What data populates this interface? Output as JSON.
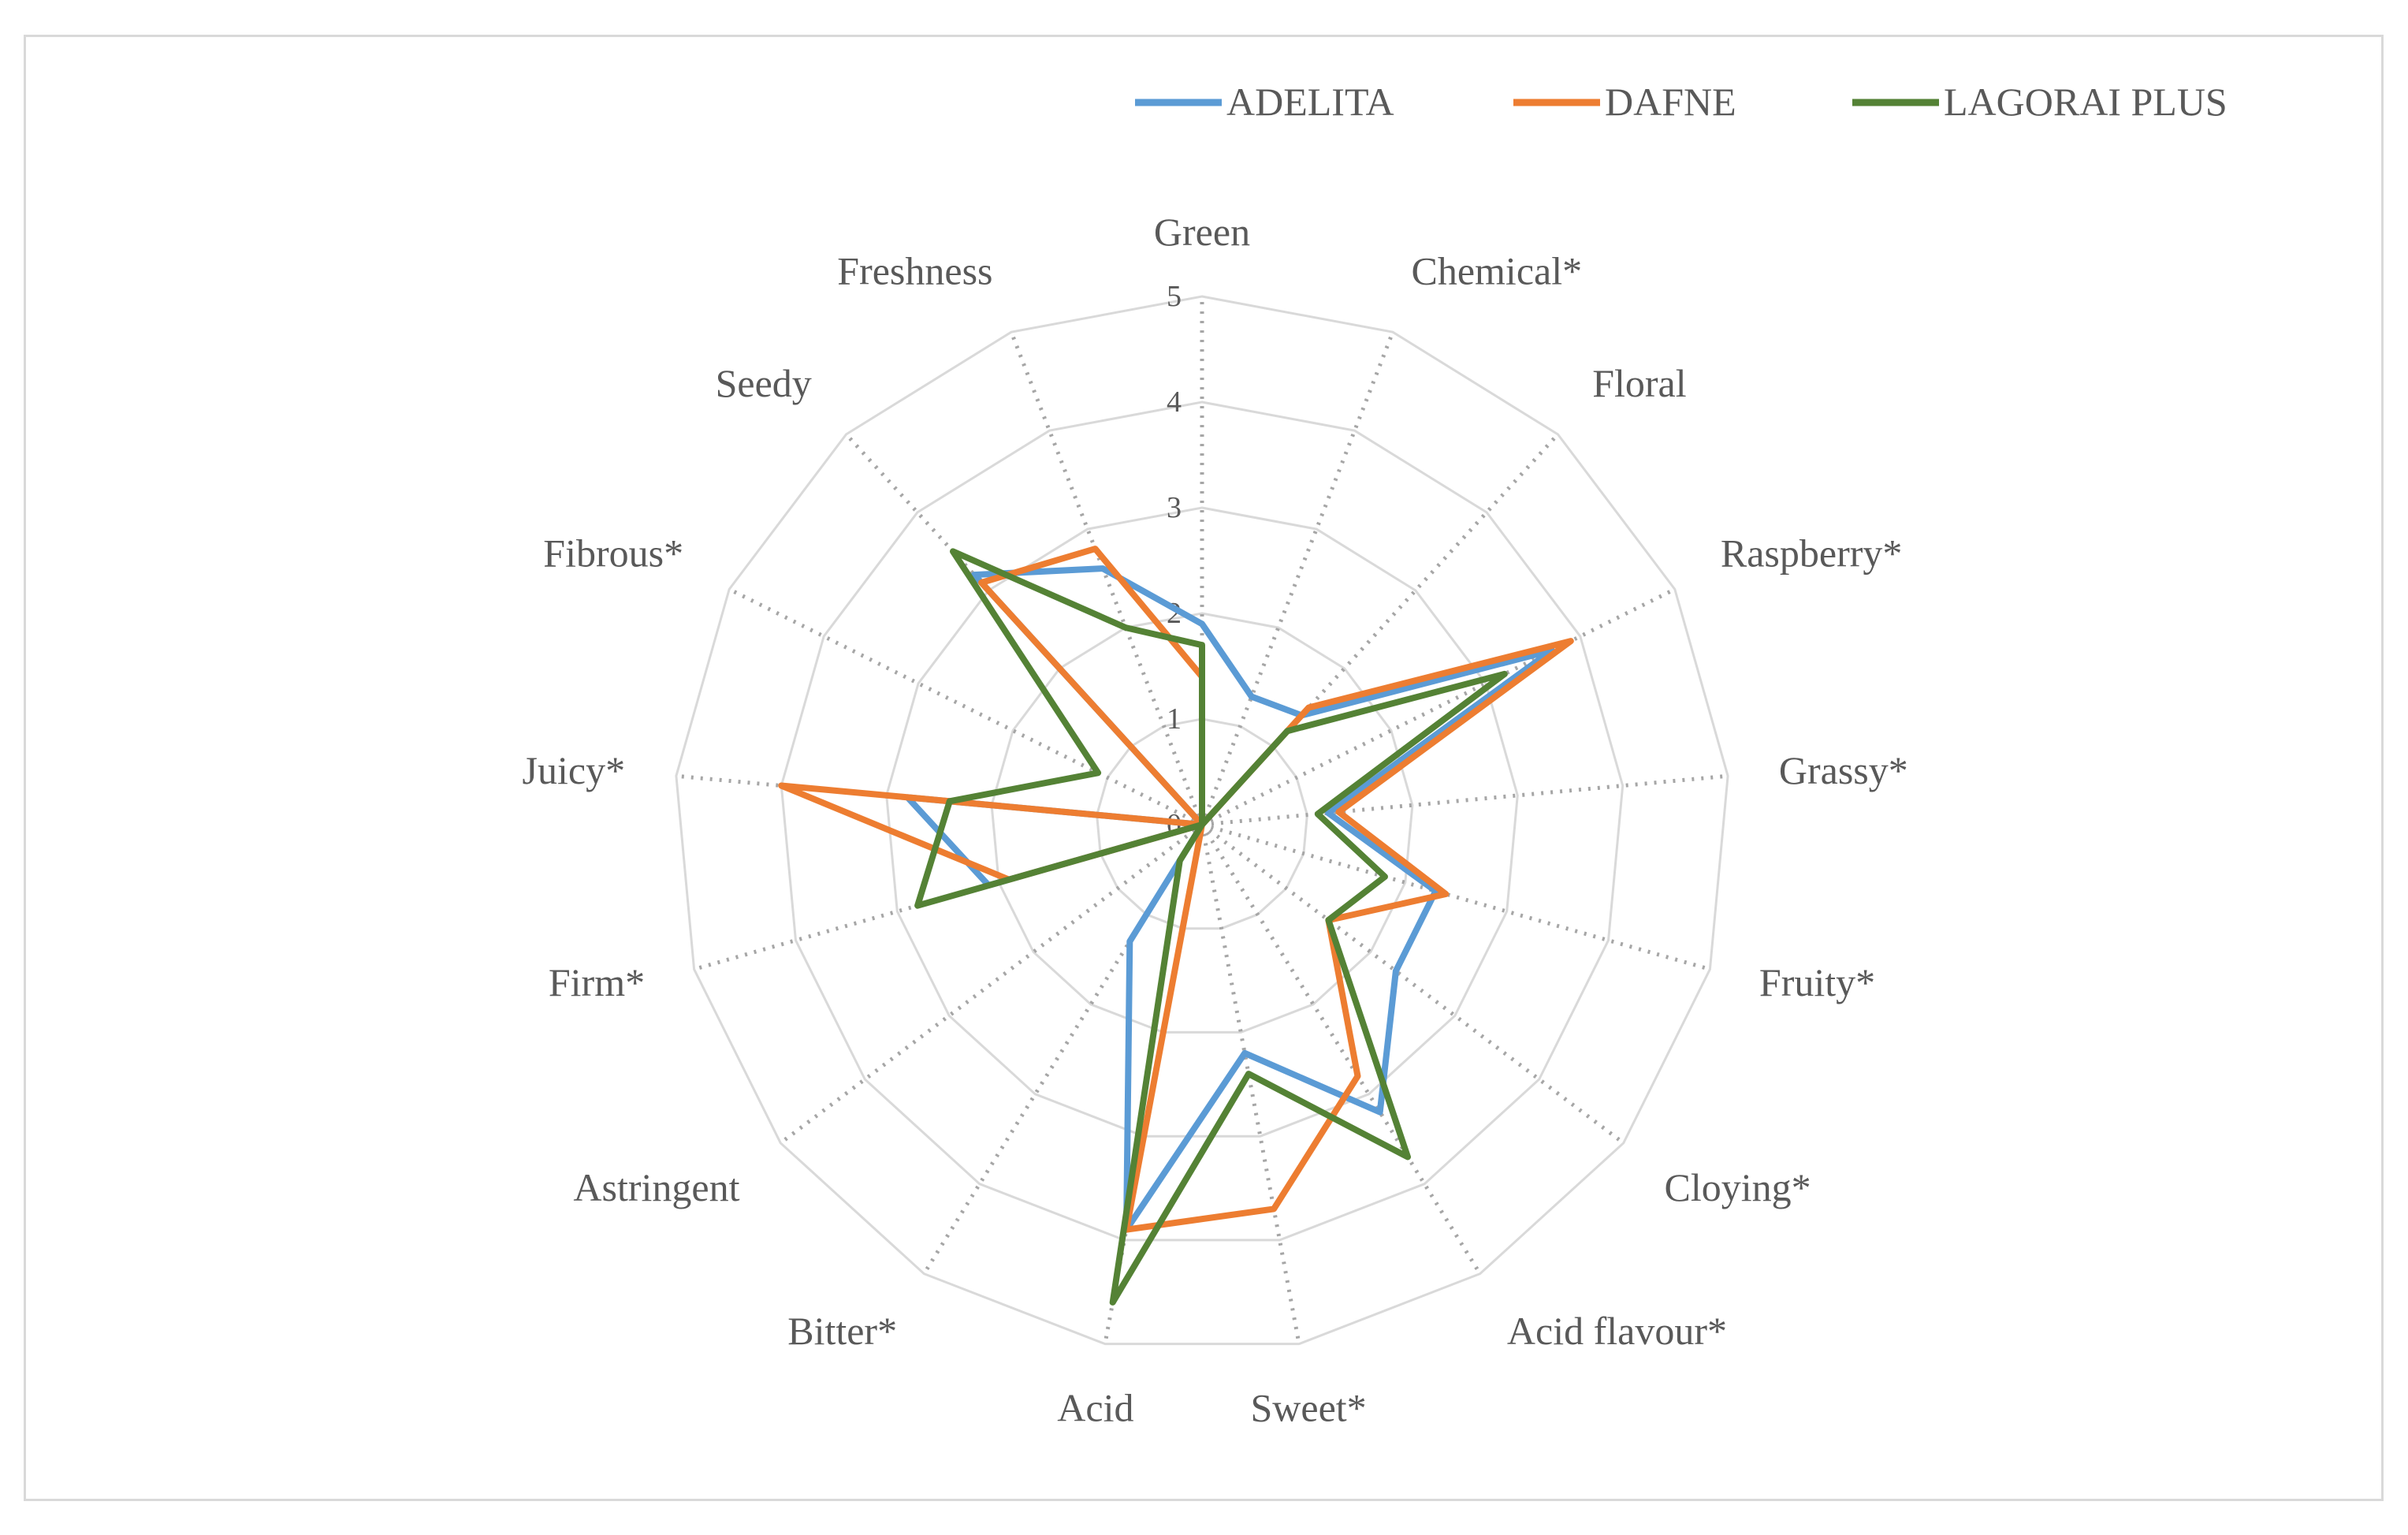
{
  "chart_data": {
    "type": "radar",
    "categories": [
      "Green",
      "Chemical*",
      "Floral",
      "Raspberry*",
      "Grassy*",
      "Fruity*",
      "Cloying*",
      "Acid flavour*",
      "Sweet*",
      "Acid",
      "Bitter*",
      "Astringent",
      "Firm*",
      "Juicy*",
      "Fibrous*",
      "Seedy",
      "Freshness"
    ],
    "rlim": [
      0,
      5
    ],
    "ticks": [
      "0",
      "1",
      "2",
      "3",
      "4",
      "5"
    ],
    "grid": true,
    "legend_position": "top-right",
    "series": [
      {
        "name": "ADELITA",
        "color": "#5b9bd5",
        "values": [
          1.9,
          1.3,
          1.4,
          3.7,
          1.2,
          2.3,
          2.3,
          3.2,
          2.2,
          3.9,
          1.3,
          0.0,
          2.1,
          2.8,
          0.0,
          3.2,
          2.6
        ]
      },
      {
        "name": "DAFNE",
        "color": "#ed7d31",
        "values": [
          1.4,
          0.0,
          1.5,
          3.9,
          1.3,
          2.4,
          1.5,
          2.8,
          3.7,
          3.9,
          0.0,
          0.0,
          1.9,
          4.0,
          0.0,
          3.1,
          2.8
        ]
      },
      {
        "name": "LAGORAI PLUS",
        "color": "#548235",
        "values": [
          1.7,
          0.0,
          1.2,
          3.2,
          1.1,
          1.8,
          1.5,
          3.7,
          2.4,
          4.6,
          0.4,
          0.0,
          2.8,
          2.4,
          1.1,
          3.5,
          2.0
        ]
      }
    ]
  }
}
